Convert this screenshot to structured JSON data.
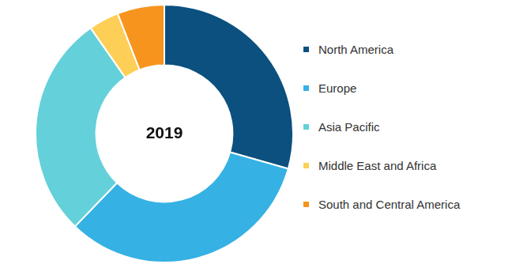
{
  "chart_data": {
    "type": "doughnut",
    "title": "2019",
    "categories": [
      "North America",
      "Europe",
      "Asia Pacific",
      "Middle East and Africa",
      "South and Central America"
    ],
    "values": [
      29.4,
      32.8,
      28.1,
      3.8,
      5.9
    ],
    "colors": [
      "#0b507e",
      "#35b1e4",
      "#64d0da",
      "#fdcf56",
      "#f7941d"
    ],
    "legend": "right"
  }
}
